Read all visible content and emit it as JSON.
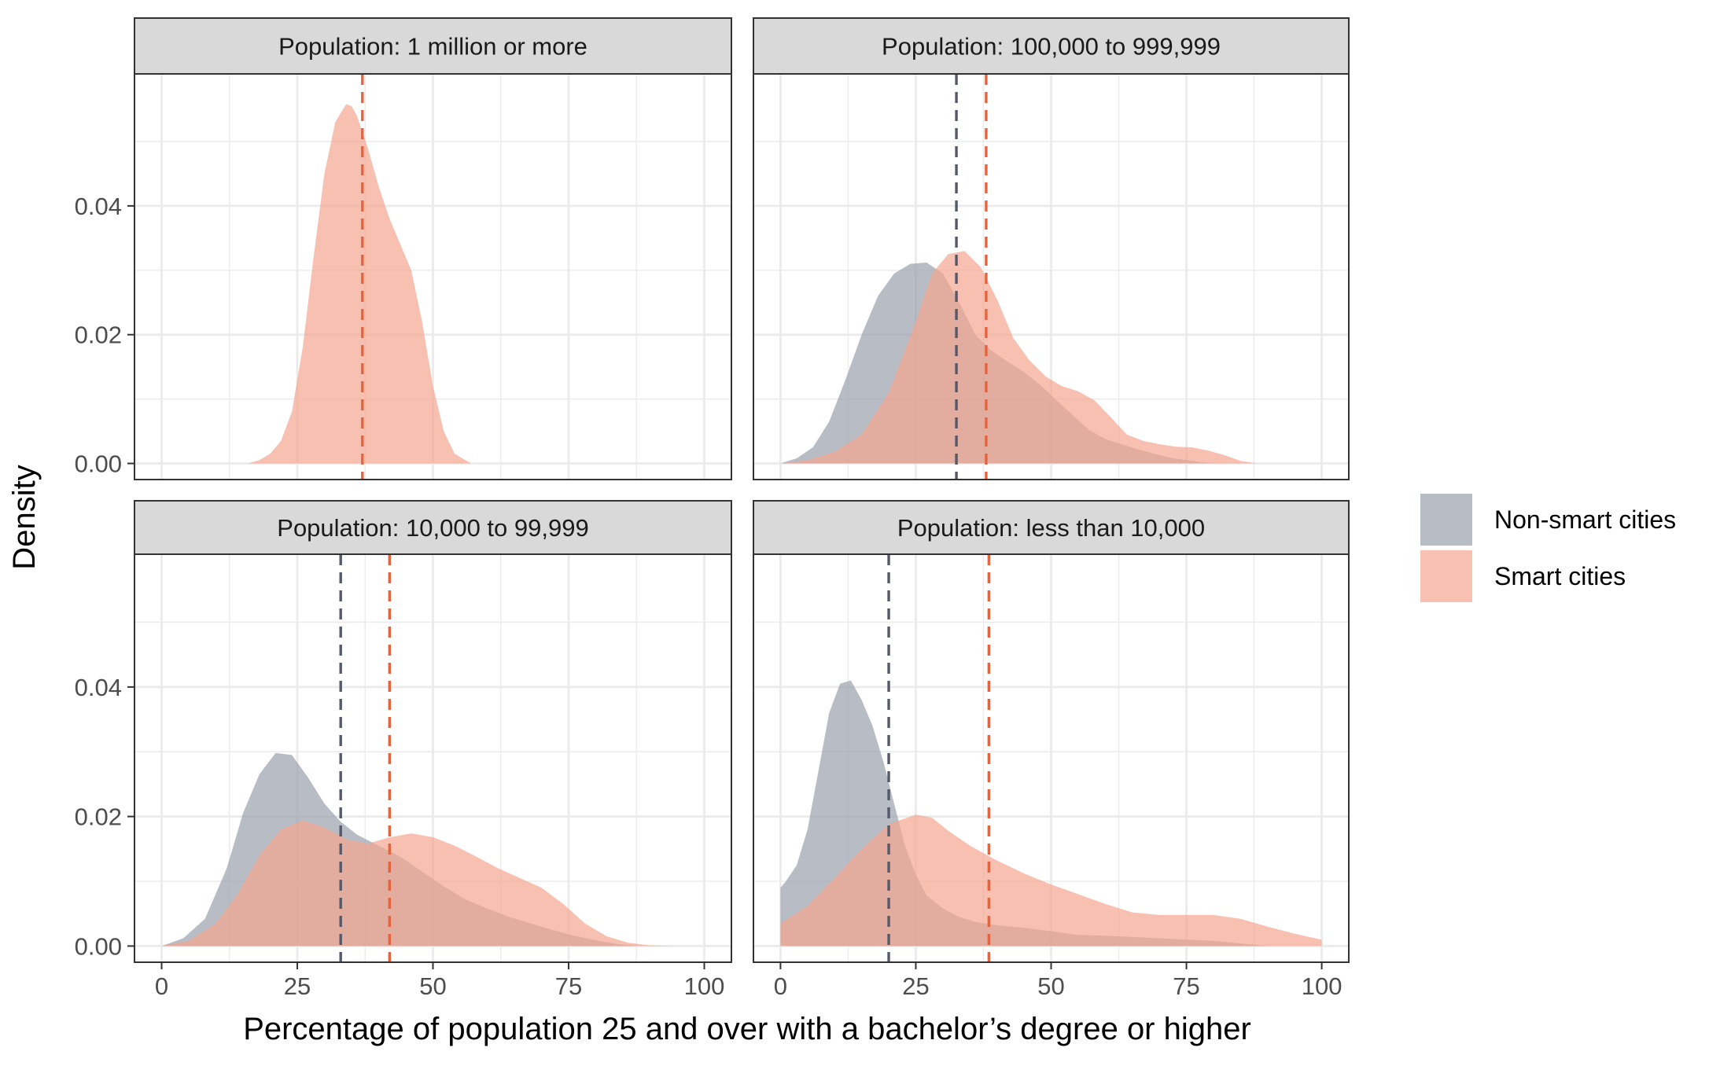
{
  "chart_data": {
    "type": "area",
    "subtype": "faceted density",
    "xlabel": "Percentage of population 25 and over with a bachelor’s degree or higher",
    "ylabel": "Density",
    "xlim": [
      -5,
      105
    ],
    "ylim": [
      -0.0025,
      0.0605
    ],
    "x_ticks": [
      0,
      25,
      50,
      75,
      100
    ],
    "x_tick_labels": [
      "0",
      "25",
      "50",
      "75",
      "100"
    ],
    "y_ticks": [
      0.0,
      0.02,
      0.04
    ],
    "y_tick_labels": [
      "0.00",
      "0.02",
      "0.04"
    ],
    "grid": true,
    "legend_position": "right",
    "legend": [
      {
        "label": "Non-smart cities",
        "color": "#9aa0ac"
      },
      {
        "label": "Smart cities",
        "color": "#f4a58f"
      }
    ],
    "colors": {
      "non_smart_fill": "#9aa0ac",
      "smart_fill": "#f4a58f",
      "non_smart_mean_line": "#55596a",
      "smart_mean_line": "#e4643f",
      "strip_fill": "#d9d9d9",
      "grid": "#ebebeb"
    },
    "panels": [
      {
        "title": "Population: 1 million or more",
        "means": {
          "smart": 37,
          "non_smart": null
        },
        "series": [
          {
            "name": "Smart cities",
            "x": [
              16,
              18,
              20,
              22,
              24,
              26,
              28,
              30,
              32,
              34,
              35,
              36,
              38,
              40,
              42,
              44,
              46,
              48,
              50,
              52,
              54,
              57
            ],
            "y": [
              0.0,
              0.0005,
              0.0015,
              0.0035,
              0.008,
              0.018,
              0.032,
              0.045,
              0.053,
              0.0558,
              0.0555,
              0.054,
              0.049,
              0.043,
              0.038,
              0.034,
              0.03,
              0.022,
              0.012,
              0.005,
              0.0015,
              0.0
            ]
          }
        ]
      },
      {
        "title": "Population: 100,000 to 999,999",
        "means": {
          "smart": 38,
          "non_smart": 32.5
        },
        "series": [
          {
            "name": "Non-smart cities",
            "x": [
              0,
              3,
              6,
              9,
              12,
              15,
              18,
              21,
              24,
              27,
              30,
              33,
              36,
              39,
              42,
              45,
              48,
              51,
              54,
              57,
              60,
              63,
              66,
              69,
              72,
              75,
              78,
              81
            ],
            "y": [
              0.0,
              0.0008,
              0.0025,
              0.0065,
              0.013,
              0.02,
              0.026,
              0.0295,
              0.031,
              0.0312,
              0.0295,
              0.025,
              0.02,
              0.0175,
              0.0158,
              0.0142,
              0.0122,
              0.0098,
              0.0075,
              0.0052,
              0.0038,
              0.003,
              0.0022,
              0.0015,
              0.0009,
              0.0005,
              0.0002,
              0.0
            ]
          },
          {
            "name": "Smart cities",
            "x": [
              0,
              5,
              10,
              15,
              20,
              25,
              28,
              31,
              34,
              37,
              40,
              43,
              46,
              49,
              52,
              55,
              58,
              61,
              64,
              67,
              70,
              73,
              76,
              79,
              82,
              85,
              88
            ],
            "y": [
              0.0,
              0.0005,
              0.0018,
              0.0045,
              0.011,
              0.022,
              0.0295,
              0.0325,
              0.033,
              0.0305,
              0.0255,
              0.0195,
              0.016,
              0.0135,
              0.012,
              0.0112,
              0.0098,
              0.0072,
              0.0045,
              0.0035,
              0.003,
              0.0026,
              0.0025,
              0.002,
              0.0013,
              0.0004,
              0.0
            ]
          }
        ]
      },
      {
        "title": "Population: 10,000 to 99,999",
        "means": {
          "smart": 42,
          "non_smart": 33
        },
        "series": [
          {
            "name": "Non-smart cities",
            "x": [
              0,
              4,
              8,
              12,
              15,
              18,
              21,
              24,
              27,
              30,
              33,
              36,
              40,
              44,
              48,
              52,
              56,
              60,
              64,
              68,
              72,
              76,
              80,
              84,
              88
            ],
            "y": [
              0.0,
              0.0012,
              0.0042,
              0.012,
              0.0205,
              0.0265,
              0.0298,
              0.0295,
              0.026,
              0.022,
              0.0192,
              0.0172,
              0.0155,
              0.0138,
              0.0115,
              0.0092,
              0.0072,
              0.0058,
              0.0045,
              0.0035,
              0.0025,
              0.0016,
              0.0009,
              0.0003,
              0.0
            ]
          },
          {
            "name": "Smart cities",
            "x": [
              0,
              5,
              10,
              14,
              18,
              22,
              26,
              30,
              34,
              38,
              42,
              46,
              50,
              54,
              58,
              62,
              66,
              70,
              74,
              78,
              82,
              86,
              90,
              95
            ],
            "y": [
              0.0,
              0.0008,
              0.0035,
              0.008,
              0.014,
              0.018,
              0.0194,
              0.0183,
              0.0165,
              0.0158,
              0.0168,
              0.0174,
              0.0168,
              0.0155,
              0.0138,
              0.012,
              0.0105,
              0.009,
              0.0065,
              0.0035,
              0.0015,
              0.0005,
              0.0001,
              0.0
            ]
          }
        ]
      },
      {
        "title": "Population: less than 10,000",
        "means": {
          "smart": 38.5,
          "non_smart": 20
        },
        "series": [
          {
            "name": "Non-smart cities",
            "x": [
              0,
              1,
              3,
              5,
              7,
              9,
              11,
              13,
              15,
              17,
              19,
              21,
              23,
              25,
              27,
              30,
              33,
              36,
              40,
              45,
              50,
              55,
              60,
              65,
              70,
              75,
              80,
              85,
              90
            ],
            "y": [
              0.009,
              0.01,
              0.0125,
              0.018,
              0.027,
              0.036,
              0.0405,
              0.041,
              0.038,
              0.034,
              0.0285,
              0.022,
              0.0155,
              0.011,
              0.0078,
              0.0058,
              0.0045,
              0.0037,
              0.0032,
              0.0028,
              0.0023,
              0.0017,
              0.0016,
              0.0014,
              0.0012,
              0.001,
              0.0008,
              0.0004,
              0.0
            ]
          },
          {
            "name": "Smart cities",
            "x": [
              0,
              5,
              10,
              15,
              20,
              25,
              28,
              31,
              35,
              40,
              45,
              50,
              55,
              60,
              65,
              70,
              75,
              80,
              85,
              90,
              95,
              100
            ],
            "y": [
              0.0035,
              0.0062,
              0.0105,
              0.015,
              0.0188,
              0.0203,
              0.0198,
              0.0178,
              0.0155,
              0.0132,
              0.0112,
              0.0095,
              0.008,
              0.0065,
              0.0052,
              0.0048,
              0.0048,
              0.0048,
              0.0042,
              0.003,
              0.0019,
              0.001
            ]
          }
        ]
      }
    ]
  }
}
